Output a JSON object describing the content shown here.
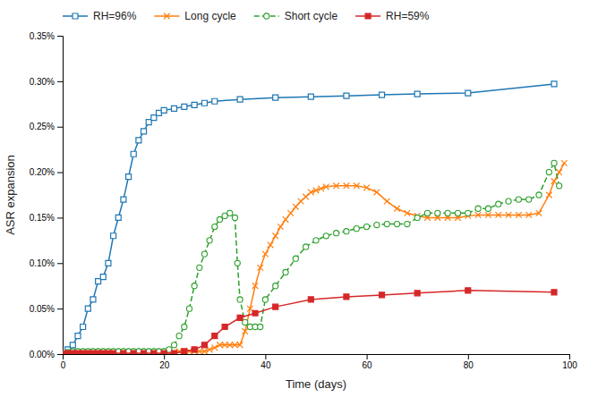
{
  "chart_data": {
    "type": "line",
    "xlabel": "Time (days)",
    "ylabel": "ASR expansion",
    "xlim": [
      0,
      100
    ],
    "ylim": [
      0,
      0.0035
    ],
    "xticks": [
      0,
      20,
      40,
      60,
      80,
      100
    ],
    "yticks": [
      {
        "value": 0.0,
        "label": "0.00%"
      },
      {
        "value": 0.0005,
        "label": "0.05%"
      },
      {
        "value": 0.001,
        "label": "0.10%"
      },
      {
        "value": 0.0015,
        "label": "0.15%"
      },
      {
        "value": 0.002,
        "label": "0.20%"
      },
      {
        "value": 0.0025,
        "label": "0.25%"
      },
      {
        "value": 0.003,
        "label": "0.30%"
      },
      {
        "value": 0.0035,
        "label": "0.35%"
      }
    ],
    "grid": false,
    "legend": "upper left",
    "series": [
      {
        "name": "RH=96%",
        "marker": "square-open",
        "line_style": "solid",
        "x": [
          0,
          1,
          2,
          3,
          4,
          5,
          6,
          7,
          8,
          9,
          10,
          11,
          12,
          13,
          14,
          15,
          16,
          17,
          18,
          19,
          20,
          22,
          24,
          26,
          28,
          30,
          35,
          42,
          49,
          56,
          63,
          70,
          80,
          97
        ],
        "values": [
          0.0,
          5e-05,
          0.0001,
          0.0002,
          0.0003,
          0.0005,
          0.0006,
          0.0008,
          0.00085,
          0.001,
          0.0013,
          0.0015,
          0.0017,
          0.00195,
          0.0022,
          0.00235,
          0.00245,
          0.00255,
          0.0026,
          0.00265,
          0.00268,
          0.0027,
          0.00272,
          0.00274,
          0.00276,
          0.00278,
          0.0028,
          0.00282,
          0.00283,
          0.00284,
          0.00285,
          0.00286,
          0.00287,
          0.00297
        ]
      },
      {
        "name": "Long cycle",
        "marker": "x",
        "line_style": "solid",
        "x": [
          0,
          1,
          2,
          3,
          4,
          5,
          6,
          7,
          8,
          9,
          10,
          11,
          12,
          13,
          14,
          15,
          16,
          17,
          18,
          19,
          20,
          21,
          22,
          23,
          24,
          25,
          26,
          27,
          28,
          29,
          30,
          31,
          32,
          33,
          34,
          35,
          36,
          37,
          38,
          39,
          40,
          41,
          42,
          43,
          44,
          45,
          46,
          47,
          48,
          49,
          50,
          51,
          52,
          54,
          56,
          58,
          60,
          62,
          64,
          66,
          68,
          70,
          72,
          74,
          76,
          78,
          80,
          82,
          84,
          86,
          88,
          90,
          92,
          94,
          96,
          97,
          98,
          99
        ],
        "values": [
          0.0,
          1e-05,
          1e-05,
          1e-05,
          1e-05,
          1e-05,
          1e-05,
          1e-05,
          1e-05,
          1e-05,
          1e-05,
          1e-05,
          1e-05,
          1e-05,
          1e-05,
          1e-05,
          1e-05,
          1e-05,
          1e-05,
          2e-05,
          2e-05,
          2e-05,
          2e-05,
          3e-05,
          3e-05,
          3e-05,
          3e-05,
          3e-05,
          3e-05,
          5e-05,
          7e-05,
          0.0001,
          0.0001,
          0.0001,
          0.0001,
          0.0001,
          0.00025,
          0.0005,
          0.00075,
          0.00095,
          0.0011,
          0.0012,
          0.0013,
          0.0014,
          0.00148,
          0.00155,
          0.00162,
          0.00168,
          0.00173,
          0.00178,
          0.0018,
          0.00182,
          0.00184,
          0.00185,
          0.00185,
          0.00185,
          0.00183,
          0.00178,
          0.00168,
          0.0016,
          0.00155,
          0.00152,
          0.0015,
          0.0015,
          0.0015,
          0.0015,
          0.00152,
          0.00153,
          0.00153,
          0.00153,
          0.00153,
          0.00153,
          0.00153,
          0.00155,
          0.00175,
          0.0019,
          0.002,
          0.0021
        ]
      },
      {
        "name": "Short cycle",
        "marker": "circle-open",
        "line_style": "dashed",
        "x": [
          0,
          1,
          2,
          3,
          4,
          5,
          6,
          7,
          8,
          9,
          10,
          11,
          12,
          13,
          14,
          15,
          16,
          17,
          18,
          19,
          20,
          21,
          22,
          23,
          24,
          25,
          26,
          27,
          28,
          29,
          30,
          31,
          32,
          33,
          34,
          34.5,
          35,
          36,
          37,
          38,
          39,
          40,
          42,
          44,
          46,
          48,
          50,
          52,
          54,
          56,
          58,
          60,
          62,
          64,
          66,
          68,
          70,
          72,
          74,
          76,
          78,
          80,
          82,
          84,
          86,
          88,
          90,
          92,
          94,
          96,
          97,
          98
        ],
        "values": [
          0.0,
          2e-05,
          3e-05,
          3e-05,
          3e-05,
          3e-05,
          3e-05,
          3e-05,
          3e-05,
          3e-05,
          3e-05,
          3e-05,
          3e-05,
          3e-05,
          3e-05,
          3e-05,
          3e-05,
          3e-05,
          3e-05,
          3e-05,
          3e-05,
          5e-05,
          0.0001,
          0.0002,
          0.0003,
          0.0005,
          0.00075,
          0.00095,
          0.0011,
          0.00125,
          0.0014,
          0.00148,
          0.00152,
          0.00155,
          0.0015,
          0.001,
          0.0006,
          0.00035,
          0.0003,
          0.0003,
          0.0003,
          0.0006,
          0.00075,
          0.0009,
          0.00105,
          0.00118,
          0.00125,
          0.0013,
          0.00133,
          0.00135,
          0.00138,
          0.0014,
          0.00142,
          0.00143,
          0.00143,
          0.00143,
          0.0015,
          0.00155,
          0.00155,
          0.00155,
          0.00155,
          0.00155,
          0.0016,
          0.0016,
          0.00165,
          0.00168,
          0.0017,
          0.0017,
          0.00175,
          0.002,
          0.0021,
          0.00185
        ]
      },
      {
        "name": "RH=59%",
        "marker": "square",
        "line_style": "solid",
        "x": [
          0,
          1,
          2,
          3,
          4,
          5,
          6,
          7,
          8,
          9,
          10,
          12,
          14,
          16,
          18,
          20,
          22,
          24,
          26,
          28,
          30,
          32,
          35,
          38,
          42,
          49,
          56,
          63,
          70,
          80,
          97
        ],
        "values": [
          0.0,
          1e-05,
          1e-05,
          1e-05,
          1e-05,
          1e-05,
          1e-05,
          1e-05,
          1e-05,
          1e-05,
          1e-05,
          1e-05,
          1e-05,
          1e-05,
          1e-05,
          1e-05,
          1e-05,
          3e-05,
          5e-05,
          0.0001,
          0.0002,
          0.0003,
          0.0004,
          0.00045,
          0.00052,
          0.0006,
          0.00063,
          0.00065,
          0.00067,
          0.0007,
          0.00068
        ]
      }
    ]
  }
}
